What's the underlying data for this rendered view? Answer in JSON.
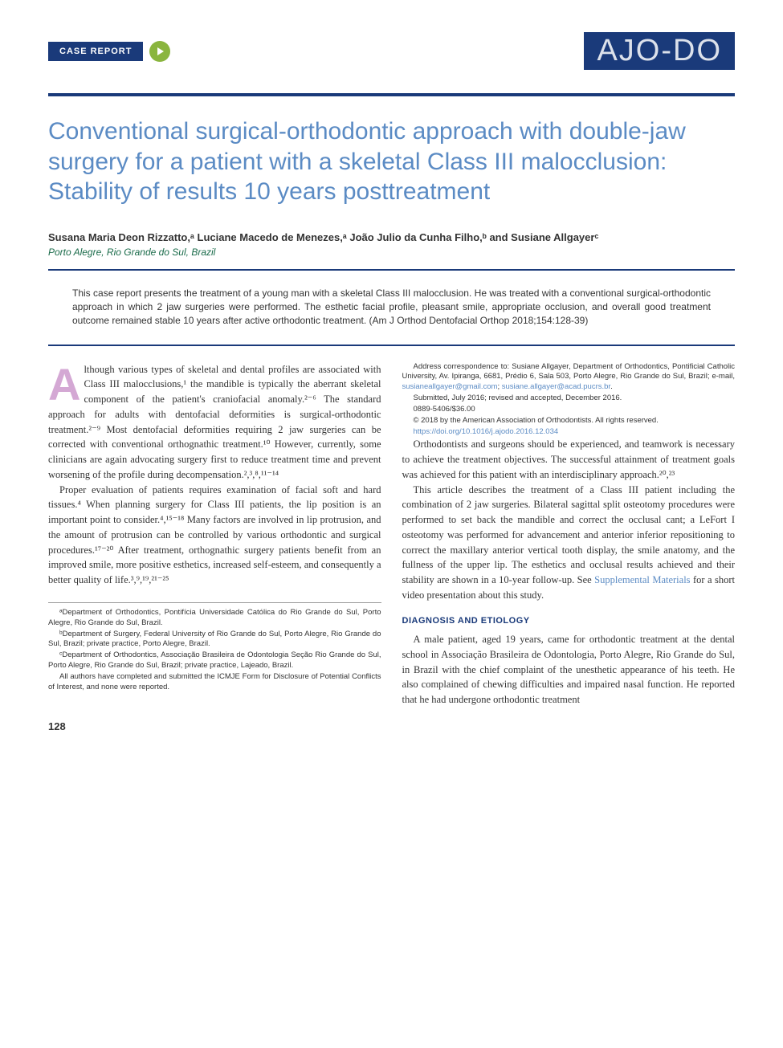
{
  "header": {
    "tag": "CASE REPORT",
    "journal": "AJO-DO"
  },
  "title": "Conventional surgical-orthodontic approach with double-jaw surgery for a patient with a skeletal Class III malocclusion: Stability of results 10 years posttreatment",
  "authors_line": "Susana Maria Deon Rizzatto,ᵃ Luciane Macedo de Menezes,ᵃ João Julio da Cunha Filho,ᵇ and Susiane Allgayerᶜ",
  "affiliation": "Porto Alegre, Rio Grande do Sul, Brazil",
  "abstract": "This case report presents the treatment of a young man with a skeletal Class III malocclusion. He was treated with a conventional surgical-orthodontic approach in which 2 jaw surgeries were performed. The esthetic facial profile, pleasant smile, appropriate occlusion, and overall good treatment outcome remained stable 10 years after active orthodontic treatment. (Am J Orthod Dentofacial Orthop 2018;154:128-39)",
  "body": {
    "p1_dropcap": "A",
    "p1": "lthough various types of skeletal and dental profiles are associated with Class III malocclusions,¹ the mandible is typically the aberrant skeletal component of the patient's craniofacial anomaly.²⁻⁶ The standard approach for adults with dentofacial deformities is surgical-orthodontic treatment.²⁻⁹ Most dentofacial deformities requiring 2 jaw surgeries can be corrected with conventional orthognathic treatment.¹⁰ However, currently, some clinicians are again advocating surgery first to reduce treatment time and prevent worsening of the profile during decompensation.²,³,⁸,¹¹⁻¹⁴",
    "p2": "Proper evaluation of patients requires examination of facial soft and hard tissues.⁴ When planning surgery for Class III patients, the lip position is an important point to consider.⁴,¹⁵⁻¹⁸ Many factors are involved in lip protrusion, and the amount of protrusion can be controlled by various orthodontic and surgical procedures.¹⁷⁻²⁰ After treatment, orthognathic surgery patients benefit from an improved smile, more positive esthetics, increased self-esteem, and consequently a better quality of life.³,⁹,¹⁹,²¹⁻²⁵",
    "p3": "Orthodontists and surgeons should be experienced, and teamwork is necessary to achieve the treatment objectives. The successful attainment of treatment goals was achieved for this patient with an interdisciplinary approach.²⁰,²³",
    "p4a": "This article describes the treatment of a Class III patient including the combination of 2 jaw surgeries. Bilateral sagittal split osteotomy procedures were performed to set back the mandible and correct the occlusal cant; a LeFort I osteotomy was performed for advancement and anterior inferior repositioning to correct the maxillary anterior vertical tooth display, the smile anatomy, and the fullness of the upper lip. The esthetics and occlusal results achieved and their stability are shown in a 10-year follow-up. See ",
    "p4_link": "Supplemental Materials",
    "p4b": " for a short video presentation about this study.",
    "section1": "DIAGNOSIS AND ETIOLOGY",
    "p5": "A male patient, aged 19 years, came for orthodontic treatment at the dental school in Associação Brasileira de Odontologia, Porto Alegre, Rio Grande do Sul, in Brazil with the chief complaint of the unesthetic appearance of his teeth. He also complained of chewing difficulties and impaired nasal function. He reported that he had undergone orthodontic treatment"
  },
  "footnotes": {
    "f1": "ᵃDepartment of Orthodontics, Pontifícia Universidade Católica do Rio Grande do Sul, Porto Alegre, Rio Grande do Sul, Brazil.",
    "f2": "ᵇDepartment of Surgery, Federal University of Rio Grande do Sul, Porto Alegre, Rio Grande do Sul, Brazil; private practice, Porto Alegre, Brazil.",
    "f3": "ᶜDepartment of Orthodontics, Associação Brasileira de Odontologia Seção Rio Grande do Sul, Porto Alegre, Rio Grande do Sul, Brazil; private practice, Lajeado, Brazil.",
    "f4": "All authors have completed and submitted the ICMJE Form for Disclosure of Potential Conflicts of Interest, and none were reported.",
    "f5a": "Address correspondence to: Susiane Allgayer, Department of Orthodontics, Pontificial Catholic University, Av. Ipiranga, 6681, Prédio 6, Sala 503, Porto Alegre, Rio Grande do Sul, Brazil; e-mail, ",
    "f5_email1": "susianeallgayer@gmail.com",
    "f5b": "; ",
    "f5_email2": "susiane.allgayer@acad.pucrs.br",
    "f5c": ".",
    "f6": "Submitted, July 2016; revised and accepted, December 2016.",
    "f7": "0889-5406/$36.00",
    "f8": "© 2018 by the American Association of Orthodontists. All rights reserved.",
    "f9": "https://doi.org/10.1016/j.ajodo.2016.12.034"
  },
  "page_number": "128",
  "colors": {
    "navy": "#1a3a7a",
    "light_blue": "#5b8bc4",
    "green": "#8ab53e",
    "teal_green": "#1a6b4a",
    "dropcap_purple": "#d4a8d4"
  }
}
